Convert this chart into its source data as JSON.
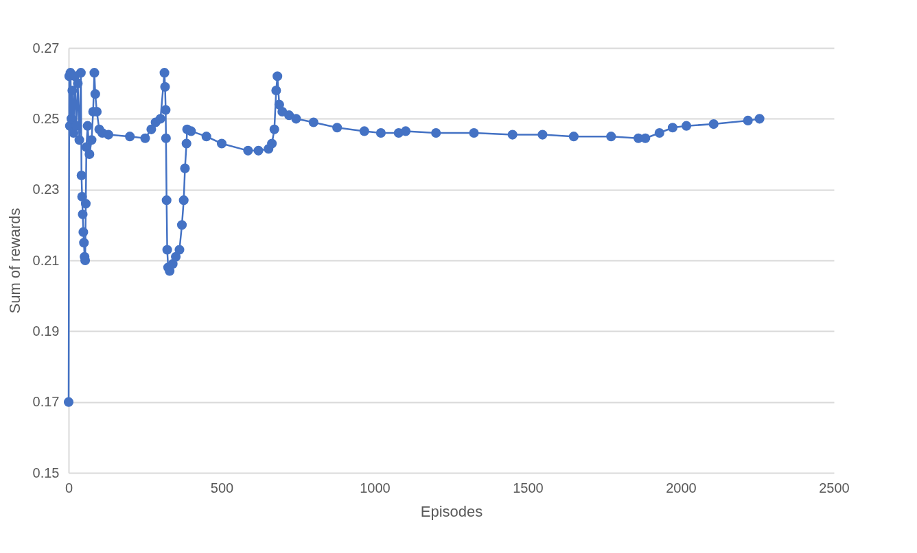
{
  "chart_data": {
    "type": "line",
    "xlabel": "Episodes",
    "ylabel": "Sum of rewards",
    "x": [
      0,
      2,
      4,
      6,
      9,
      12,
      16,
      20,
      25,
      30,
      35,
      40,
      42,
      44,
      46,
      48,
      50,
      52,
      54,
      56,
      58,
      62,
      68,
      75,
      80,
      84,
      87,
      92,
      100,
      110,
      130,
      200,
      250,
      270,
      284,
      300,
      313,
      315,
      317,
      318,
      320,
      322,
      325,
      330,
      340,
      350,
      362,
      370,
      376,
      380,
      385,
      387,
      400,
      450,
      500,
      586,
      620,
      653,
      664,
      672,
      678,
      682,
      688,
      698,
      720,
      743,
      800,
      877,
      966,
      1020,
      1078,
      1101,
      1200,
      1324,
      1450,
      1548,
      1650,
      1772,
      1861,
      1884,
      1930,
      1973,
      2018,
      2107,
      2219,
      2257
    ],
    "series": [
      {
        "color": "#4472c4",
        "values": [
          0.17,
          0.262,
          0.248,
          0.263,
          0.25,
          0.258,
          0.246,
          0.262,
          0.248,
          0.26,
          0.244,
          0.263,
          0.234,
          0.228,
          0.223,
          0.218,
          0.215,
          0.211,
          0.21,
          0.226,
          0.242,
          0.248,
          0.24,
          0.244,
          0.252,
          0.263,
          0.257,
          0.252,
          0.247,
          0.246,
          0.2455,
          0.245,
          0.2445,
          0.247,
          0.249,
          0.25,
          0.263,
          0.259,
          0.2525,
          0.2445,
          0.227,
          0.213,
          0.208,
          0.207,
          0.209,
          0.211,
          0.213,
          0.22,
          0.227,
          0.236,
          0.243,
          0.247,
          0.2465,
          0.245,
          0.243,
          0.241,
          0.241,
          0.2415,
          0.243,
          0.247,
          0.258,
          0.262,
          0.254,
          0.252,
          0.251,
          0.25,
          0.249,
          0.2475,
          0.2465,
          0.246,
          0.246,
          0.2465,
          0.246,
          0.246,
          0.2455,
          0.2455,
          0.245,
          0.245,
          0.2445,
          0.2445,
          0.246,
          0.2475,
          0.248,
          0.2485,
          0.2495,
          0.25
        ]
      }
    ],
    "xlim": [
      0,
      2500
    ],
    "xticks": [
      0,
      500,
      1000,
      1500,
      2000,
      2500
    ],
    "ylim": [
      0.15,
      0.27
    ],
    "yticks": [
      0.15,
      0.17,
      0.19,
      0.21,
      0.23,
      0.25,
      0.27
    ],
    "grid": "y",
    "marker": "circle",
    "line_style": "solid"
  }
}
